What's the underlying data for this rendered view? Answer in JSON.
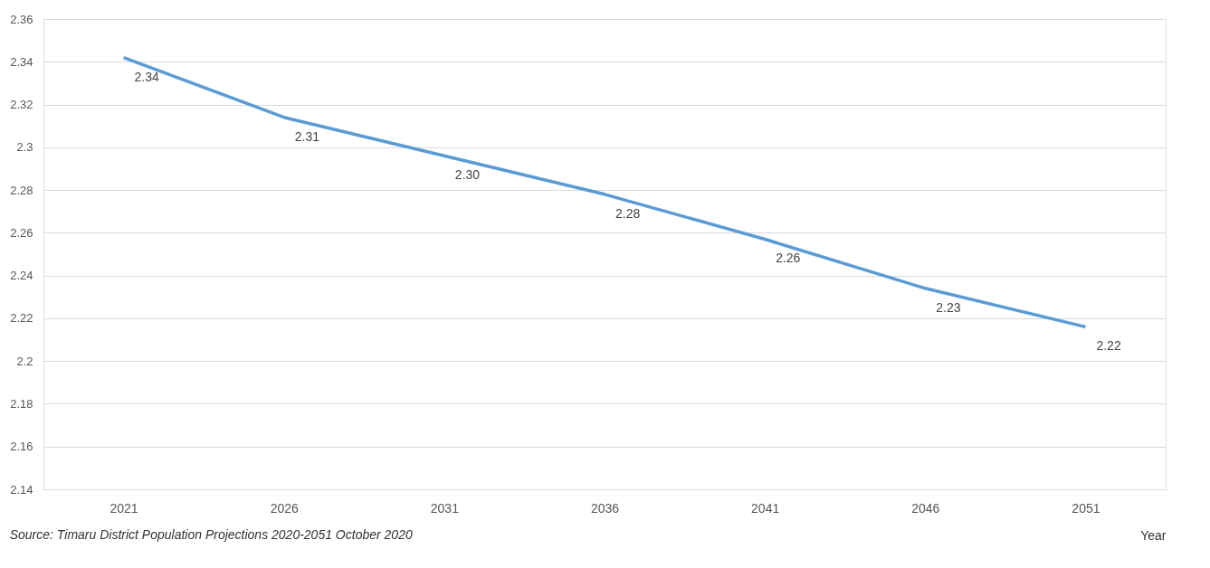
{
  "chart_data": {
    "type": "line",
    "categories": [
      "2021",
      "2026",
      "2031",
      "2036",
      "2041",
      "2046",
      "2051"
    ],
    "series": [
      {
        "color": "#5b9bd5",
        "values": [
          2.342,
          2.314,
          2.296,
          2.278,
          2.257,
          2.234,
          2.216
        ],
        "value_labels": [
          "2.34",
          "2.31",
          "2.30",
          "2.28",
          "2.26",
          "2.23",
          "2.22"
        ]
      }
    ],
    "ylim": [
      2.14,
      2.36
    ],
    "yticks": [
      2.14,
      2.16,
      2.18,
      2.2,
      2.22,
      2.24,
      2.26,
      2.28,
      2.3,
      2.32,
      2.34,
      2.36
    ],
    "xlabel": "Year",
    "grid": "y",
    "marker": "none",
    "line_style": "solid",
    "annotations": [
      "Source:  Timaru District  Population Projections  2020-2051 October 2020"
    ]
  }
}
